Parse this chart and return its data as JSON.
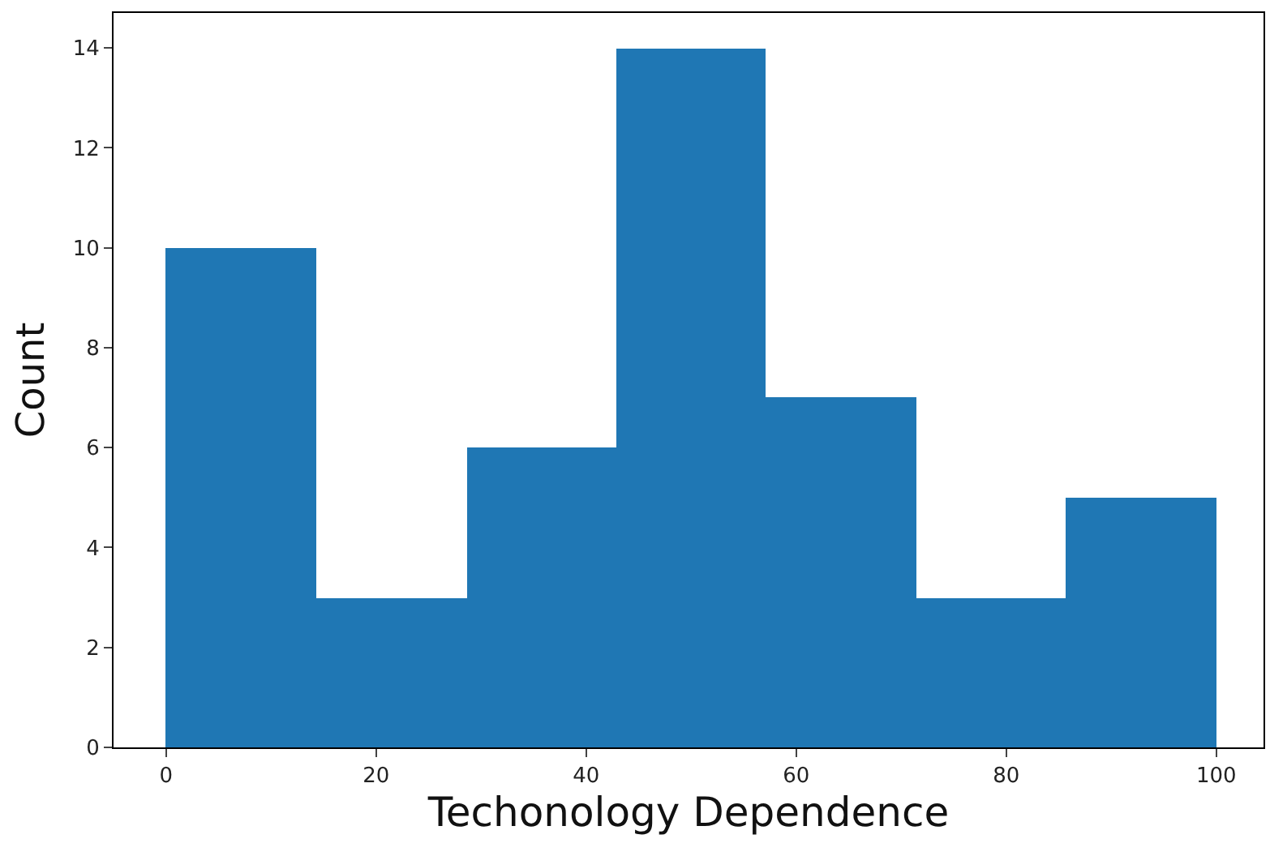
{
  "chart_data": {
    "type": "histogram",
    "xlabel": "Techonology Dependence",
    "ylabel": "Count",
    "bins": [
      0,
      14.3,
      28.6,
      42.9,
      57.1,
      71.4,
      85.7,
      100
    ],
    "values": [
      10,
      3,
      6,
      14,
      7,
      3,
      5
    ],
    "color": "#1f77b4",
    "xlim": [
      -5,
      104.5
    ],
    "xticks": [
      0,
      20,
      40,
      60,
      80,
      100
    ],
    "ylim": [
      0,
      14.7
    ],
    "yticks": [
      0,
      2,
      4,
      6,
      8,
      10,
      12,
      14
    ],
    "grid": false
  }
}
